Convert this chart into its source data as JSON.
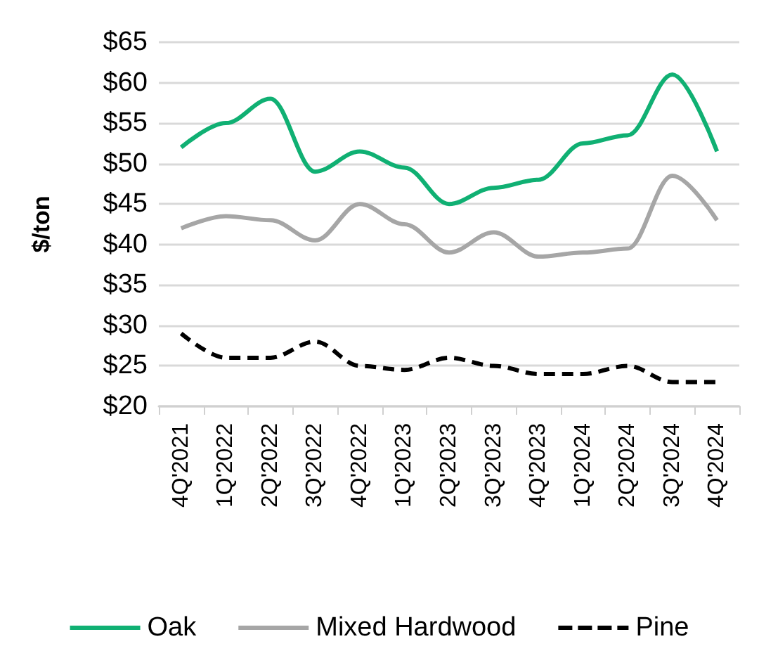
{
  "chart_data": {
    "type": "line",
    "ylabel": "$/ton",
    "categories": [
      "4Q'2021",
      "1Q'2022",
      "2Q'2022",
      "3Q'2022",
      "4Q'2022",
      "1Q'2023",
      "2Q'2023",
      "3Q'2023",
      "4Q'2023",
      "1Q'2024",
      "2Q'2024",
      "3Q'2024",
      "4Q'2024"
    ],
    "series": [
      {
        "name": "Oak",
        "color": "#10b073",
        "values": [
          52,
          55,
          58,
          49,
          51.5,
          49.5,
          45,
          47,
          48,
          52.5,
          53.5,
          61,
          51.5
        ]
      },
      {
        "name": "Mixed Hardwood",
        "color": "#a6a6a6",
        "values": [
          42,
          43.5,
          43,
          40.5,
          45,
          42.5,
          39,
          41.5,
          38.5,
          39,
          39.5,
          48.5,
          43
        ]
      },
      {
        "name": "Pine",
        "color": "#000000",
        "line_style": "dashed",
        "values": [
          29,
          26,
          26,
          28,
          25,
          24.5,
          26,
          25,
          24,
          24,
          25,
          23,
          23
        ]
      }
    ],
    "ylim": [
      20,
      65
    ],
    "yticks": [
      {
        "value": 20,
        "label": "$20"
      },
      {
        "value": 25,
        "label": "$25"
      },
      {
        "value": 30,
        "label": "$30"
      },
      {
        "value": 35,
        "label": "$35"
      },
      {
        "value": 40,
        "label": "$40"
      },
      {
        "value": 45,
        "label": "$45"
      },
      {
        "value": 50,
        "label": "$50"
      },
      {
        "value": 55,
        "label": "$55"
      },
      {
        "value": 60,
        "label": "$60"
      },
      {
        "value": 65,
        "label": "$65"
      }
    ],
    "grid": "y",
    "legend": "bottom",
    "marker": "none",
    "line_style": "solid"
  }
}
